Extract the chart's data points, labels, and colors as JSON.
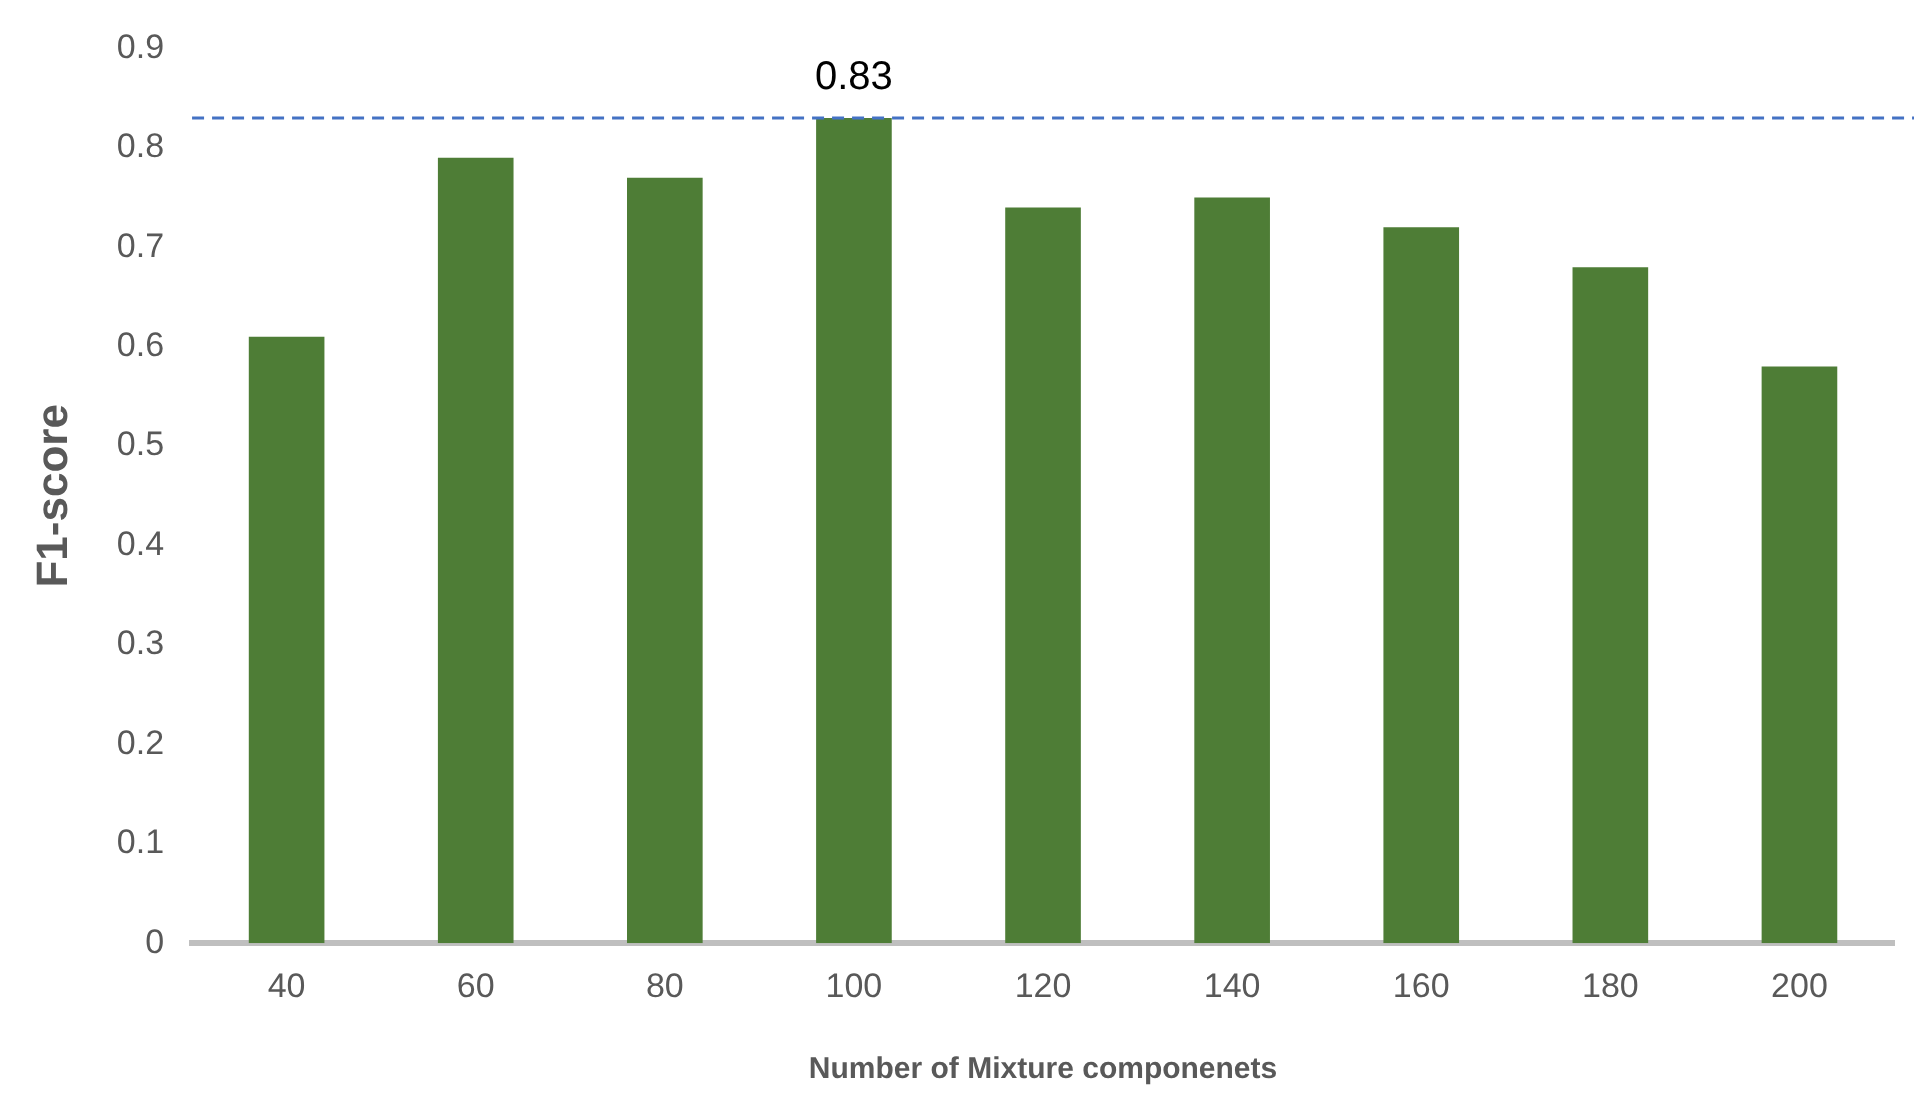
{
  "chart_data": {
    "type": "bar",
    "xlabel": "Number of Mixture componenets",
    "ylabel": "F1-score",
    "categories": [
      "40",
      "60",
      "80",
      "100",
      "120",
      "140",
      "160",
      "180",
      "200"
    ],
    "values": [
      0.61,
      0.79,
      0.77,
      0.83,
      0.74,
      0.75,
      0.72,
      0.68,
      0.58
    ],
    "color": "#4e7d36",
    "ylim": [
      0,
      0.9
    ],
    "yticks": [
      0,
      0.1,
      0.2,
      0.3,
      0.4,
      0.5,
      0.6,
      0.7,
      0.8,
      0.9
    ],
    "grid": false,
    "legend": false,
    "ref_lines": [
      {
        "axis": "y",
        "value": 0.83,
        "color": "#4472c4",
        "line_style": "dashed"
      }
    ],
    "annotations": [
      {
        "text": "0.83",
        "x": "100",
        "y": 0.83
      }
    ]
  }
}
